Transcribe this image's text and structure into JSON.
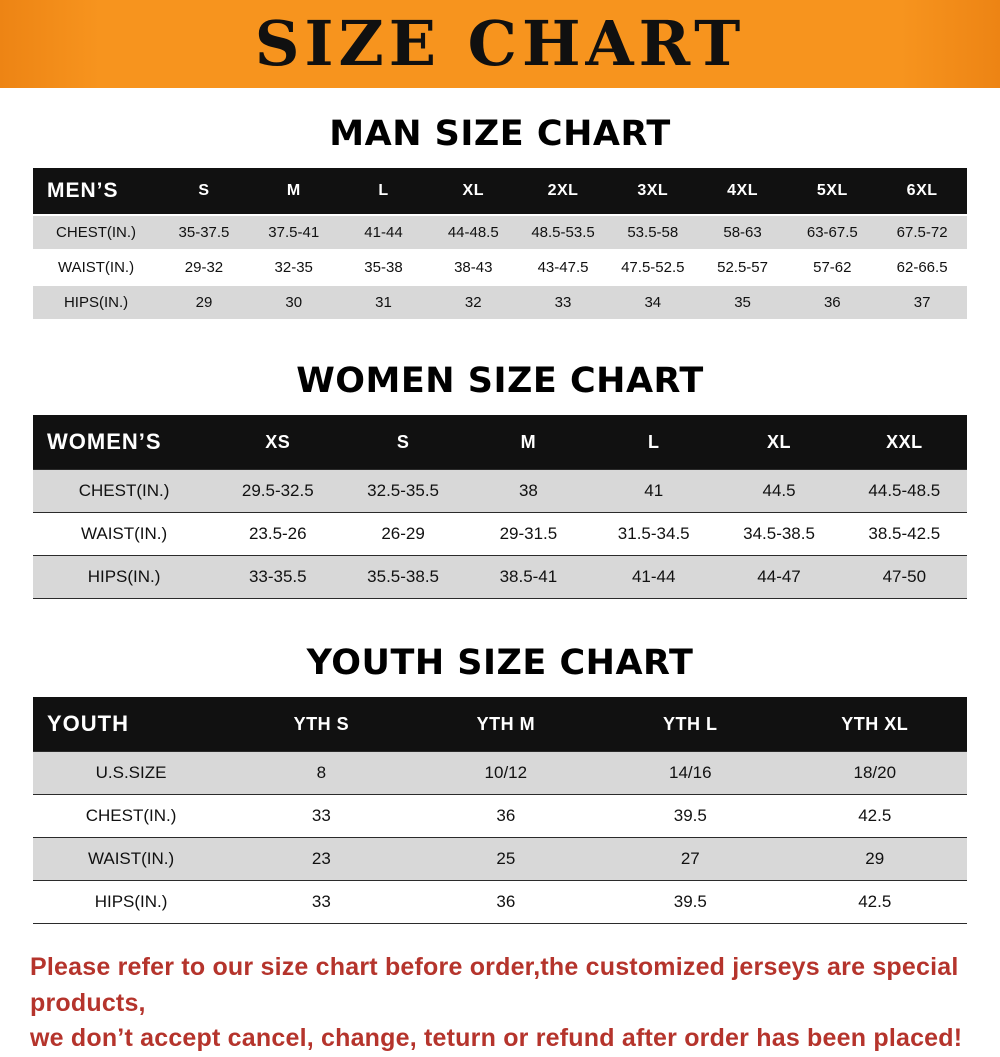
{
  "banner": {
    "title": "SIZE CHART",
    "bg": "#f7941e",
    "text_color": "#101010"
  },
  "colors": {
    "table_header_bg": "#111111",
    "alt_row_bg": "#d8d8d8",
    "footer_text": "#b5342c"
  },
  "sections": [
    {
      "heading": "MAN SIZE CHART",
      "table": {
        "header": [
          "MEN’S",
          "S",
          "M",
          "L",
          "XL",
          "2XL",
          "3XL",
          "4XL",
          "5XL",
          "6XL"
        ],
        "rows": [
          [
            "CHEST(IN.)",
            "35-37.5",
            "37.5-41",
            "41-44",
            "44-48.5",
            "48.5-53.5",
            "53.5-58",
            "58-63",
            "63-67.5",
            "67.5-72"
          ],
          [
            "WAIST(IN.)",
            "29-32",
            "32-35",
            "35-38",
            "38-43",
            "43-47.5",
            "47.5-52.5",
            "52.5-57",
            "57-62",
            "62-66.5"
          ],
          [
            "HIPS(IN.)",
            "29",
            "30",
            "31",
            "32",
            "33",
            "34",
            "35",
            "36",
            "37"
          ]
        ]
      }
    },
    {
      "heading": "WOMEN SIZE CHART",
      "table": {
        "header": [
          "WOMEN’S",
          "XS",
          "S",
          "M",
          "L",
          "XL",
          "XXL"
        ],
        "rows": [
          [
            "CHEST(IN.)",
            "29.5-32.5",
            "32.5-35.5",
            "38",
            "41",
            "44.5",
            "44.5-48.5"
          ],
          [
            "WAIST(IN.)",
            "23.5-26",
            "26-29",
            "29-31.5",
            "31.5-34.5",
            "34.5-38.5",
            "38.5-42.5"
          ],
          [
            "HIPS(IN.)",
            "33-35.5",
            "35.5-38.5",
            "38.5-41",
            "41-44",
            "44-47",
            "47-50"
          ]
        ]
      }
    },
    {
      "heading": "YOUTH SIZE CHART",
      "table": {
        "header": [
          "YOUTH",
          "YTH S",
          "YTH M",
          "YTH L",
          "YTH XL"
        ],
        "rows": [
          [
            "U.S.SIZE",
            "8",
            "10/12",
            "14/16",
            "18/20"
          ],
          [
            "CHEST(IN.)",
            "33",
            "36",
            "39.5",
            "42.5"
          ],
          [
            "WAIST(IN.)",
            "23",
            "25",
            "27",
            "29"
          ],
          [
            "HIPS(IN.)",
            "33",
            "36",
            "39.5",
            "42.5"
          ]
        ]
      }
    }
  ],
  "footer": {
    "line1": "Please refer to our size chart before order,the customized jerseys are special products,",
    "line2": "we don’t accept cancel, change, teturn or refund after order has been placed!"
  }
}
